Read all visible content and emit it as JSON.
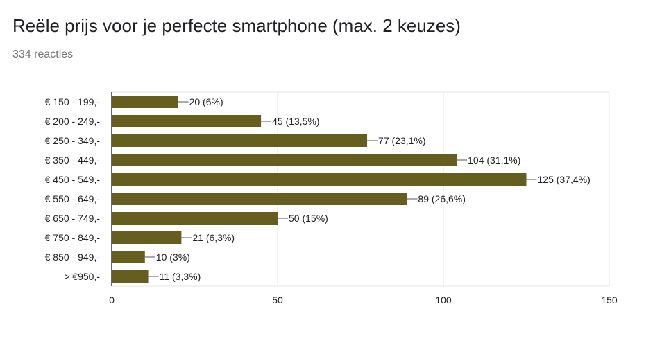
{
  "header": {
    "title": "Reële prijs voor je perfecte smartphone (max. 2 keuzes)",
    "subtitle": "334 reacties"
  },
  "chart_data": {
    "type": "bar",
    "orientation": "horizontal",
    "categories": [
      "€ 150 - 199,-",
      "€ 200 - 249,-",
      "€ 250 - 349,-",
      "€ 350 - 449,-",
      "€ 450 - 549,-",
      "€ 550 - 649,-",
      "€ 650 - 749,-",
      "€ 750 - 849,-",
      "€ 850 - 949,-",
      "> €950,-"
    ],
    "values": [
      20,
      45,
      77,
      104,
      125,
      89,
      50,
      21,
      10,
      11
    ],
    "data_labels": [
      "20 (6%)",
      "45 (13,5%)",
      "77 (23,1%)",
      "104 (31,1%)",
      "125 (37,4%)",
      "89 (26,6%)",
      "50 (15%)",
      "21 (6,3%)",
      "10 (3%)",
      "11 (3,3%)"
    ],
    "xlim": [
      0,
      150
    ],
    "xticks": [
      0,
      50,
      100,
      150
    ],
    "grid": true,
    "bar_color": "#665e1f",
    "gridline_color": "#e6e6e6",
    "axis_color": "#333333"
  }
}
